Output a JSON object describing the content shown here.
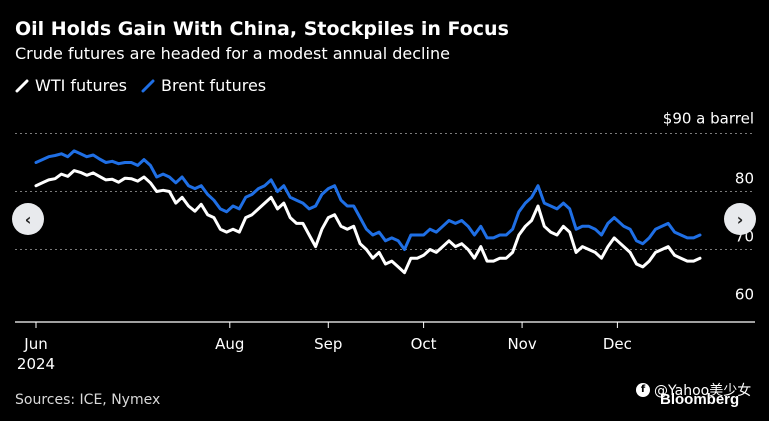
{
  "header": {
    "title": "Oil Holds Gain With China, Stockpiles in Focus",
    "subtitle": "Crude futures are headed for a modest annual decline"
  },
  "footer": {
    "source": "Sources: ICE, Nymex",
    "brand": "Bloomberg",
    "watermark": "@Yahoo美少女"
  },
  "colors": {
    "wti": "#ffffff",
    "brent": "#1f6fe5",
    "grid": "#7a7a7a",
    "background": "#000000"
  },
  "nav": {
    "prev_icon": "chevron-left-icon",
    "next_icon": "chevron-right-icon",
    "prev_glyph": "‹",
    "next_glyph": "›"
  },
  "chart_data": {
    "type": "line",
    "ylabel": "$90 a barrel",
    "ylim": [
      57.5,
      97.5
    ],
    "y_ticks": [
      60,
      70,
      80
    ],
    "y_tick_labels": [
      "60",
      "70",
      "80"
    ],
    "gridlines": [
      70,
      80,
      90
    ],
    "grid": true,
    "legend_position": "top-left",
    "x_tick_dates": [
      "2024-06-01",
      "2024-08-01",
      "2024-09-01",
      "2024-10-01",
      "2024-11-01",
      "2024-12-01"
    ],
    "x_tick_labels": [
      "Jun",
      "Aug",
      "Sep",
      "Oct",
      "Nov",
      "Dec"
    ],
    "x_year_label": "2024",
    "x_range": [
      "2024-06-01",
      "2024-12-27"
    ],
    "series": [
      {
        "name": "WTI futures",
        "color": "#ffffff",
        "points": [
          [
            "2024-06-01",
            81.0
          ],
          [
            "2024-06-03",
            81.5
          ],
          [
            "2024-06-05",
            82.0
          ],
          [
            "2024-06-07",
            82.2
          ],
          [
            "2024-06-09",
            83.0
          ],
          [
            "2024-06-11",
            82.6
          ],
          [
            "2024-06-13",
            83.6
          ],
          [
            "2024-06-15",
            83.3
          ],
          [
            "2024-06-17",
            82.8
          ],
          [
            "2024-06-19",
            83.2
          ],
          [
            "2024-06-21",
            82.6
          ],
          [
            "2024-06-23",
            82.0
          ],
          [
            "2024-06-25",
            82.1
          ],
          [
            "2024-06-27",
            81.6
          ],
          [
            "2024-06-29",
            82.3
          ],
          [
            "2024-07-01",
            82.2
          ],
          [
            "2024-07-03",
            81.8
          ],
          [
            "2024-07-05",
            82.5
          ],
          [
            "2024-07-07",
            81.5
          ],
          [
            "2024-07-09",
            80.0
          ],
          [
            "2024-07-11",
            80.2
          ],
          [
            "2024-07-13",
            80.0
          ],
          [
            "2024-07-15",
            78.0
          ],
          [
            "2024-07-17",
            79.0
          ],
          [
            "2024-07-19",
            77.5
          ],
          [
            "2024-07-21",
            76.6
          ],
          [
            "2024-07-23",
            77.8
          ],
          [
            "2024-07-25",
            76.0
          ],
          [
            "2024-07-27",
            75.5
          ],
          [
            "2024-07-29",
            73.5
          ],
          [
            "2024-07-31",
            73.0
          ],
          [
            "2024-08-02",
            73.5
          ],
          [
            "2024-08-04",
            73.0
          ],
          [
            "2024-08-06",
            75.5
          ],
          [
            "2024-08-08",
            76.0
          ],
          [
            "2024-08-10",
            77.0
          ],
          [
            "2024-08-12",
            78.0
          ],
          [
            "2024-08-14",
            79.0
          ],
          [
            "2024-08-16",
            77.0
          ],
          [
            "2024-08-18",
            78.0
          ],
          [
            "2024-08-20",
            75.5
          ],
          [
            "2024-08-22",
            74.5
          ],
          [
            "2024-08-24",
            74.5
          ],
          [
            "2024-08-26",
            72.5
          ],
          [
            "2024-08-28",
            70.5
          ],
          [
            "2024-08-30",
            73.5
          ],
          [
            "2024-09-01",
            75.5
          ],
          [
            "2024-09-03",
            76.0
          ],
          [
            "2024-09-05",
            74.0
          ],
          [
            "2024-09-07",
            73.5
          ],
          [
            "2024-09-09",
            74.0
          ],
          [
            "2024-09-11",
            71.0
          ],
          [
            "2024-09-13",
            70.0
          ],
          [
            "2024-09-15",
            68.5
          ],
          [
            "2024-09-17",
            69.5
          ],
          [
            "2024-09-19",
            67.5
          ],
          [
            "2024-09-21",
            68.0
          ],
          [
            "2024-09-23",
            67.0
          ],
          [
            "2024-09-25",
            66.0
          ],
          [
            "2024-09-27",
            68.5
          ],
          [
            "2024-09-29",
            68.5
          ],
          [
            "2024-10-01",
            69.0
          ],
          [
            "2024-10-03",
            70.0
          ],
          [
            "2024-10-05",
            69.5
          ],
          [
            "2024-10-07",
            70.5
          ],
          [
            "2024-10-09",
            71.5
          ],
          [
            "2024-10-11",
            70.5
          ],
          [
            "2024-10-13",
            71.0
          ],
          [
            "2024-10-15",
            70.0
          ],
          [
            "2024-10-17",
            68.5
          ],
          [
            "2024-10-19",
            70.5
          ],
          [
            "2024-10-21",
            68.0
          ],
          [
            "2024-10-23",
            68.0
          ],
          [
            "2024-10-25",
            68.5
          ],
          [
            "2024-10-27",
            68.5
          ],
          [
            "2024-10-29",
            69.5
          ],
          [
            "2024-10-31",
            72.5
          ],
          [
            "2024-11-02",
            74.0
          ],
          [
            "2024-11-04",
            75.0
          ],
          [
            "2024-11-06",
            77.5
          ],
          [
            "2024-11-08",
            74.0
          ],
          [
            "2024-11-10",
            73.0
          ],
          [
            "2024-11-12",
            72.5
          ],
          [
            "2024-11-14",
            74.0
          ],
          [
            "2024-11-16",
            73.0
          ],
          [
            "2024-11-18",
            69.5
          ],
          [
            "2024-11-20",
            70.5
          ],
          [
            "2024-11-22",
            70.0
          ],
          [
            "2024-11-24",
            69.5
          ],
          [
            "2024-11-26",
            68.5
          ],
          [
            "2024-11-28",
            70.5
          ],
          [
            "2024-11-30",
            72.0
          ],
          [
            "2024-12-01",
            71.5
          ],
          [
            "2024-12-03",
            70.5
          ],
          [
            "2024-12-05",
            69.5
          ],
          [
            "2024-12-07",
            67.5
          ],
          [
            "2024-12-09",
            67.0
          ],
          [
            "2024-12-11",
            68.0
          ],
          [
            "2024-12-13",
            69.5
          ],
          [
            "2024-12-15",
            70.0
          ],
          [
            "2024-12-17",
            70.5
          ],
          [
            "2024-12-19",
            69.0
          ],
          [
            "2024-12-21",
            68.5
          ],
          [
            "2024-12-23",
            68.0
          ],
          [
            "2024-12-25",
            68.0
          ],
          [
            "2024-12-27",
            68.5
          ]
        ]
      },
      {
        "name": "Brent futures",
        "color": "#1f6fe5",
        "points": [
          [
            "2024-06-01",
            85.0
          ],
          [
            "2024-06-03",
            85.5
          ],
          [
            "2024-06-05",
            86.0
          ],
          [
            "2024-06-07",
            86.2
          ],
          [
            "2024-06-09",
            86.5
          ],
          [
            "2024-06-11",
            86.0
          ],
          [
            "2024-06-13",
            87.0
          ],
          [
            "2024-06-15",
            86.5
          ],
          [
            "2024-06-17",
            86.0
          ],
          [
            "2024-06-19",
            86.3
          ],
          [
            "2024-06-21",
            85.6
          ],
          [
            "2024-06-23",
            85.0
          ],
          [
            "2024-06-25",
            85.2
          ],
          [
            "2024-06-27",
            84.8
          ],
          [
            "2024-06-29",
            85.0
          ],
          [
            "2024-07-01",
            85.0
          ],
          [
            "2024-07-03",
            84.5
          ],
          [
            "2024-07-05",
            85.5
          ],
          [
            "2024-07-07",
            84.5
          ],
          [
            "2024-07-09",
            82.5
          ],
          [
            "2024-07-11",
            83.0
          ],
          [
            "2024-07-13",
            82.5
          ],
          [
            "2024-07-15",
            81.5
          ],
          [
            "2024-07-17",
            82.5
          ],
          [
            "2024-07-19",
            81.0
          ],
          [
            "2024-07-21",
            80.5
          ],
          [
            "2024-07-23",
            81.0
          ],
          [
            "2024-07-25",
            79.5
          ],
          [
            "2024-07-27",
            78.5
          ],
          [
            "2024-07-29",
            77.0
          ],
          [
            "2024-07-31",
            76.5
          ],
          [
            "2024-08-02",
            77.5
          ],
          [
            "2024-08-04",
            77.0
          ],
          [
            "2024-08-06",
            79.0
          ],
          [
            "2024-08-08",
            79.5
          ],
          [
            "2024-08-10",
            80.5
          ],
          [
            "2024-08-12",
            81.0
          ],
          [
            "2024-08-14",
            82.0
          ],
          [
            "2024-08-16",
            80.0
          ],
          [
            "2024-08-18",
            81.0
          ],
          [
            "2024-08-20",
            79.0
          ],
          [
            "2024-08-22",
            78.5
          ],
          [
            "2024-08-24",
            78.0
          ],
          [
            "2024-08-26",
            77.0
          ],
          [
            "2024-08-28",
            77.5
          ],
          [
            "2024-08-30",
            79.5
          ],
          [
            "2024-09-01",
            80.5
          ],
          [
            "2024-09-03",
            81.0
          ],
          [
            "2024-09-05",
            78.5
          ],
          [
            "2024-09-07",
            77.5
          ],
          [
            "2024-09-09",
            77.5
          ],
          [
            "2024-09-11",
            75.5
          ],
          [
            "2024-09-13",
            73.5
          ],
          [
            "2024-09-15",
            72.5
          ],
          [
            "2024-09-17",
            73.0
          ],
          [
            "2024-09-19",
            71.5
          ],
          [
            "2024-09-21",
            72.0
          ],
          [
            "2024-09-23",
            71.5
          ],
          [
            "2024-09-25",
            70.0
          ],
          [
            "2024-09-27",
            72.5
          ],
          [
            "2024-09-29",
            72.5
          ],
          [
            "2024-10-01",
            72.5
          ],
          [
            "2024-10-03",
            73.5
          ],
          [
            "2024-10-05",
            73.0
          ],
          [
            "2024-10-07",
            74.0
          ],
          [
            "2024-10-09",
            75.0
          ],
          [
            "2024-10-11",
            74.5
          ],
          [
            "2024-10-13",
            75.0
          ],
          [
            "2024-10-15",
            74.0
          ],
          [
            "2024-10-17",
            72.5
          ],
          [
            "2024-10-19",
            74.0
          ],
          [
            "2024-10-21",
            72.0
          ],
          [
            "2024-10-23",
            72.0
          ],
          [
            "2024-10-25",
            72.5
          ],
          [
            "2024-10-27",
            72.5
          ],
          [
            "2024-10-29",
            73.5
          ],
          [
            "2024-10-31",
            76.5
          ],
          [
            "2024-11-02",
            78.0
          ],
          [
            "2024-11-04",
            79.0
          ],
          [
            "2024-11-06",
            81.0
          ],
          [
            "2024-11-08",
            78.0
          ],
          [
            "2024-11-10",
            77.5
          ],
          [
            "2024-11-12",
            77.0
          ],
          [
            "2024-11-14",
            78.0
          ],
          [
            "2024-11-16",
            77.0
          ],
          [
            "2024-11-18",
            73.5
          ],
          [
            "2024-11-20",
            74.0
          ],
          [
            "2024-11-22",
            74.0
          ],
          [
            "2024-11-24",
            73.5
          ],
          [
            "2024-11-26",
            72.5
          ],
          [
            "2024-11-28",
            74.5
          ],
          [
            "2024-11-30",
            75.5
          ],
          [
            "2024-12-01",
            75.0
          ],
          [
            "2024-12-03",
            74.0
          ],
          [
            "2024-12-05",
            73.5
          ],
          [
            "2024-12-07",
            71.5
          ],
          [
            "2024-12-09",
            71.0
          ],
          [
            "2024-12-11",
            72.0
          ],
          [
            "2024-12-13",
            73.5
          ],
          [
            "2024-12-15",
            74.0
          ],
          [
            "2024-12-17",
            74.5
          ],
          [
            "2024-12-19",
            73.0
          ],
          [
            "2024-12-21",
            72.5
          ],
          [
            "2024-12-23",
            72.0
          ],
          [
            "2024-12-25",
            72.0
          ],
          [
            "2024-12-27",
            72.5
          ]
        ]
      }
    ]
  }
}
